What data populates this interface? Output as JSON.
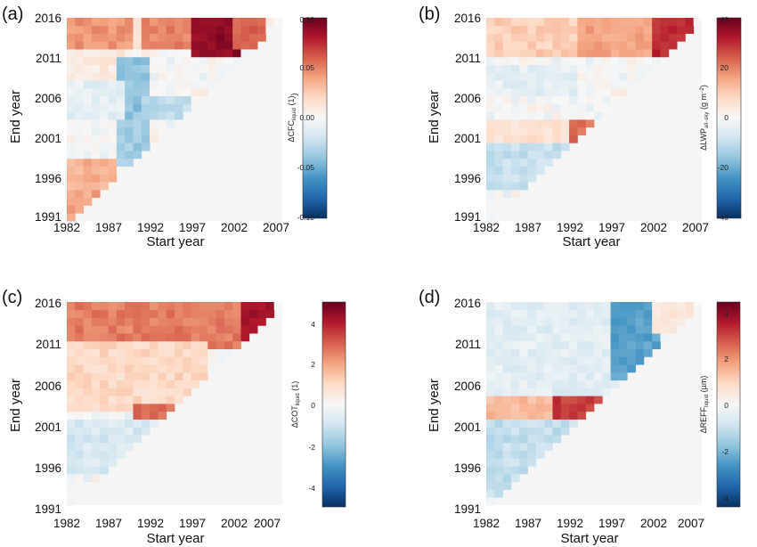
{
  "chart_data": [
    {
      "type": "heatmap",
      "panel_label": "(a)",
      "xlabel": "Start year",
      "ylabel": "End year",
      "x_ticks": [
        "1982",
        "1987",
        "1992",
        "1997",
        "2002",
        "2007"
      ],
      "y_ticks": [
        "2016",
        "2011",
        "2006",
        "2001",
        "1996",
        "1991"
      ],
      "x_range": [
        1982,
        2007
      ],
      "y_range": [
        1991,
        2016
      ],
      "colorbar": {
        "label_main": "ΔCFC",
        "label_sub": "liquid",
        "label_unit": " (1)",
        "label_sup": "",
        "ticks": [
          "0.10",
          "0.05",
          "0.00",
          "-0.05",
          "-0.10"
        ],
        "min": -0.1,
        "max": 0.1
      },
      "regions": [
        {
          "x": [
            1982,
            1990
          ],
          "y": [
            2013,
            2016
          ],
          "value": 0.045
        },
        {
          "x": [
            1990,
            1991
          ],
          "y": [
            2013,
            2016
          ],
          "value": 0.01
        },
        {
          "x": [
            1991,
            1997
          ],
          "y": [
            2013,
            2016
          ],
          "value": 0.05
        },
        {
          "x": [
            1997,
            2002
          ],
          "y": [
            2012,
            2016
          ],
          "value": 0.09
        },
        {
          "x": [
            2002,
            2005
          ],
          "y": [
            2013,
            2016
          ],
          "value": 0.06
        },
        {
          "x": [
            1982,
            1988
          ],
          "y": [
            2009,
            2012
          ],
          "value": 0.01
        },
        {
          "x": [
            1988,
            1991
          ],
          "y": [
            2004,
            2011
          ],
          "value": -0.04
        },
        {
          "x": [
            1982,
            1988
          ],
          "y": [
            2004,
            2008
          ],
          "value": -0.01
        },
        {
          "x": [
            1991,
            1996
          ],
          "y": [
            2004,
            2006
          ],
          "value": -0.025
        },
        {
          "x": [
            1988,
            1991
          ],
          "y": [
            1998,
            2003
          ],
          "value": -0.035
        },
        {
          "x": [
            1982,
            1987
          ],
          "y": [
            1994,
            1998
          ],
          "value": 0.035
        },
        {
          "x": [
            1982,
            1985
          ],
          "y": [
            1991,
            1994
          ],
          "value": 0.04
        }
      ]
    },
    {
      "type": "heatmap",
      "panel_label": "(b)",
      "xlabel": "Start year",
      "ylabel": "End year",
      "x_ticks": [
        "1982",
        "1987",
        "1992",
        "1997",
        "2002",
        "2007"
      ],
      "y_ticks": [
        "2016",
        "2011",
        "2006",
        "2001",
        "1996",
        "1991"
      ],
      "x_range": [
        1982,
        2007
      ],
      "y_range": [
        1991,
        2016
      ],
      "colorbar": {
        "label_main": "ΔLWP",
        "label_sub": "all−sky",
        "label_unit": " (g m",
        "label_sup": "−2",
        "ticks": [
          "40",
          "20",
          "0",
          "-20",
          "-40"
        ],
        "min": -40,
        "max": 40
      },
      "regions": [
        {
          "x": [
            1982,
            1993
          ],
          "y": [
            2012,
            2016
          ],
          "value": 10
        },
        {
          "x": [
            1993,
            2002
          ],
          "y": [
            2012,
            2016
          ],
          "value": 16
        },
        {
          "x": [
            2002,
            2006
          ],
          "y": [
            2012,
            2016
          ],
          "value": 30
        },
        {
          "x": [
            1982,
            1992
          ],
          "y": [
            2007,
            2010
          ],
          "value": -4
        },
        {
          "x": [
            1982,
            1992
          ],
          "y": [
            2001,
            2003
          ],
          "value": 6
        },
        {
          "x": [
            1992,
            1995
          ],
          "y": [
            2001,
            2003
          ],
          "value": 22
        },
        {
          "x": [
            1982,
            1991
          ],
          "y": [
            1995,
            2000
          ],
          "value": -9
        }
      ]
    },
    {
      "type": "heatmap",
      "panel_label": "(c)",
      "xlabel": "Start year",
      "ylabel": "End year",
      "x_ticks": [
        "1982",
        "1987",
        "1992",
        "1997",
        "2002",
        "2007"
      ],
      "y_ticks": [
        "2016",
        "2011",
        "2006",
        "2001",
        "1996",
        "1991"
      ],
      "x_range": [
        1982,
        2007
      ],
      "y_range": [
        1991,
        2016
      ],
      "colorbar": {
        "label_main": "ΔCOT",
        "label_sub": "liquid",
        "label_unit": " (1)",
        "label_sup": "",
        "ticks": [
          "4",
          "2",
          "0",
          "-2",
          "-4"
        ],
        "min": -5,
        "max": 5
      },
      "regions": [
        {
          "x": [
            1982,
            2003
          ],
          "y": [
            2011,
            2016
          ],
          "value": 2.6
        },
        {
          "x": [
            2003,
            2006
          ],
          "y": [
            2012,
            2016
          ],
          "value": 4.2
        },
        {
          "x": [
            1982,
            1998
          ],
          "y": [
            2003,
            2011
          ],
          "value": 1.0
        },
        {
          "x": [
            1990,
            1994
          ],
          "y": [
            2001,
            2003
          ],
          "value": 2.8
        },
        {
          "x": [
            1982,
            1993
          ],
          "y": [
            1995,
            2001
          ],
          "value": -0.8
        }
      ]
    },
    {
      "type": "heatmap",
      "panel_label": "(d)",
      "xlabel": "Start year",
      "ylabel": "End year",
      "x_ticks": [
        "1982",
        "1987",
        "1992",
        "1997",
        "2002",
        "2007"
      ],
      "y_ticks": [
        "2016",
        "2011",
        "2006",
        "2001",
        "1996",
        "1991"
      ],
      "x_range": [
        1982,
        2007
      ],
      "y_range": [
        1991,
        2016
      ],
      "colorbar": {
        "label_main": "ΔREFF",
        "label_sub": "liquid",
        "label_unit": " (µm)",
        "label_sup": "",
        "ticks": [
          "4",
          "2",
          "0",
          "-2",
          "-4"
        ],
        "min": -4.6,
        "max": 4.6
      },
      "regions": [
        {
          "x": [
            1982,
            1997
          ],
          "y": [
            2005,
            2016
          ],
          "value": -0.5
        },
        {
          "x": [
            1997,
            2002
          ],
          "y": [
            2007,
            2016
          ],
          "value": -2.5
        },
        {
          "x": [
            2002,
            2006
          ],
          "y": [
            2013,
            2016
          ],
          "value": 0.6
        },
        {
          "x": [
            1982,
            1990
          ],
          "y": [
            2001,
            2004
          ],
          "value": 1.5
        },
        {
          "x": [
            1990,
            1995
          ],
          "y": [
            2001,
            2004
          ],
          "value": 3.2
        },
        {
          "x": [
            1982,
            1993
          ],
          "y": [
            1992,
            2001
          ],
          "value": -1.1
        }
      ]
    }
  ]
}
